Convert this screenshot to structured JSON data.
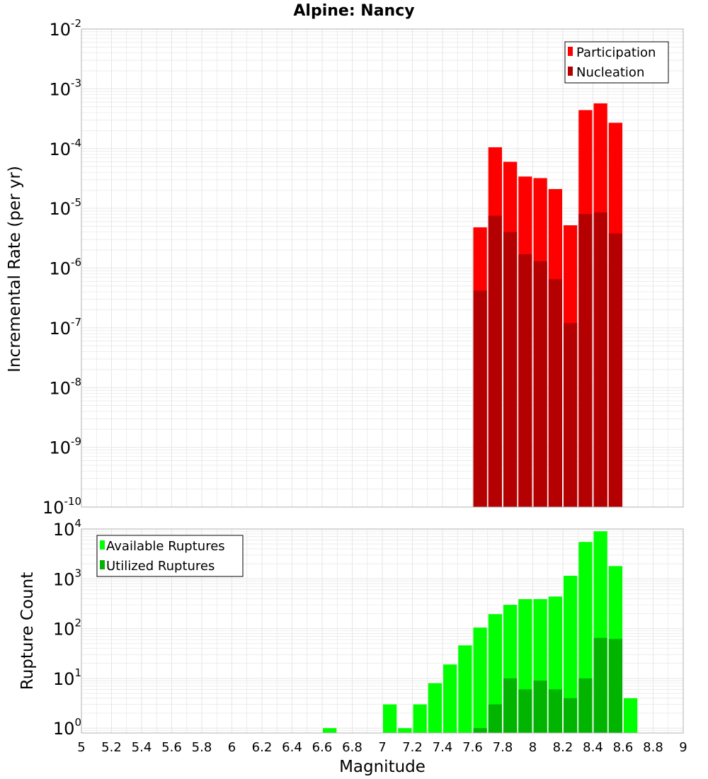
{
  "colors": {
    "participation": "#ff0000",
    "nucleation": "#b40000",
    "available": "#00ff00",
    "utilized": "#00b400",
    "grid": "#e6e6e6",
    "plot_border": "#b0b0b0"
  },
  "chart_data": [
    {
      "type": "bar",
      "title": "Alpine: Nancy",
      "xlabel": "",
      "ylabel": "Incremental Rate (per yr)",
      "y_scale": "log",
      "ylim": [
        1e-10,
        0.01
      ],
      "xlim": [
        5,
        9
      ],
      "bar_width": 0.1,
      "grid": true,
      "legend_position": "top-right",
      "y_tick_exponents": [
        "-10",
        "-9",
        "-8",
        "-7",
        "-6",
        "-5",
        "-4",
        "-3",
        "-2"
      ],
      "x": [
        7.65,
        7.75,
        7.85,
        7.95,
        8.05,
        8.15,
        8.25,
        8.35,
        8.45,
        8.55
      ],
      "series": [
        {
          "name": "Participation",
          "values": [
            4.8e-06,
            0.000105,
            6e-05,
            3.4e-05,
            3.2e-05,
            2.1e-05,
            5.2e-06,
            0.00044,
            0.00057,
            0.00027
          ]
        },
        {
          "name": "Nucleation",
          "values": [
            4.2e-07,
            7.5e-06,
            4e-06,
            1.7e-06,
            1.3e-06,
            6.5e-07,
            1.2e-07,
            8e-06,
            8.5e-06,
            3.8e-06
          ]
        }
      ]
    },
    {
      "type": "bar",
      "xlabel": "Magnitude",
      "ylabel": "Rupture Count",
      "y_scale": "log",
      "ylim": [
        0.8,
        10000
      ],
      "xlim": [
        5,
        9
      ],
      "bar_width": 0.1,
      "grid": true,
      "legend_position": "top-left",
      "y_tick_exponents": [
        "0",
        "1",
        "2",
        "3",
        "4"
      ],
      "x_ticks": [
        "5",
        "5.2",
        "5.4",
        "5.6",
        "5.8",
        "6",
        "6.2",
        "6.4",
        "6.6",
        "6.8",
        "7",
        "7.2",
        "7.4",
        "7.6",
        "7.8",
        "8",
        "8.2",
        "8.4",
        "8.6",
        "8.8",
        "9"
      ],
      "x": [
        6.65,
        7.05,
        7.15,
        7.25,
        7.35,
        7.45,
        7.55,
        7.65,
        7.75,
        7.85,
        7.95,
        8.05,
        8.15,
        8.25,
        8.35,
        8.45,
        8.55,
        8.65
      ],
      "series": [
        {
          "name": "Available Ruptures",
          "values": [
            1,
            3,
            1,
            3,
            8,
            19,
            46,
            105,
            195,
            300,
            390,
            390,
            440,
            1150,
            5500,
            9000,
            1800,
            4
          ]
        },
        {
          "name": "Utilized Ruptures",
          "values": [
            0,
            0,
            0,
            0,
            0,
            0,
            0,
            1,
            3,
            10,
            6,
            9,
            6,
            4,
            10,
            65,
            62,
            0
          ]
        }
      ]
    }
  ]
}
